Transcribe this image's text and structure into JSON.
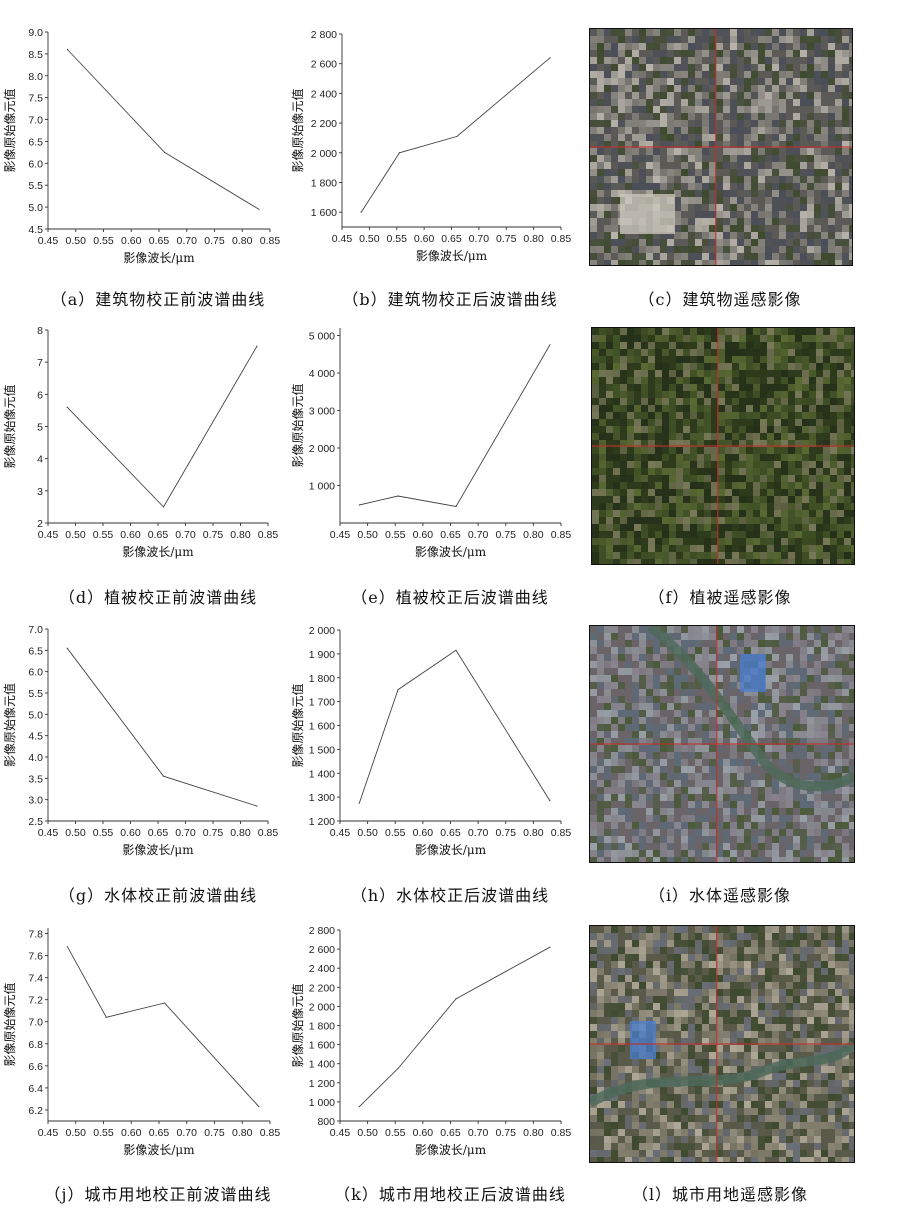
{
  "chart_data": [
    {
      "id": "a",
      "type": "line",
      "xlabel": "影像波长/μm",
      "ylabel": "影像原始像元值",
      "x": [
        0.485,
        0.66,
        0.83
      ],
      "values": [
        8.6,
        6.25,
        4.95
      ],
      "xlim": [
        0.45,
        0.85
      ],
      "ylim": [
        4.5,
        9.0
      ],
      "xticks": [
        0.45,
        0.5,
        0.55,
        0.6,
        0.65,
        0.7,
        0.75,
        0.8,
        0.85
      ],
      "yticks": [
        4.5,
        5.0,
        5.5,
        6.0,
        6.5,
        7.0,
        7.5,
        8.0,
        8.5,
        9.0
      ],
      "ytick_labels": [
        "4.5",
        "5.0",
        "5.5",
        "6.0",
        "6.5",
        "7.0",
        "7.5",
        "8.0",
        "8.5",
        "9.0"
      ]
    },
    {
      "id": "b",
      "type": "line",
      "xlabel": "影像波长/μm",
      "ylabel": "影像原始像元值",
      "x": [
        0.485,
        0.555,
        0.66,
        0.83
      ],
      "values": [
        1600,
        2000,
        2110,
        2640
      ],
      "xlim": [
        0.45,
        0.85
      ],
      "ylim": [
        1500,
        2800
      ],
      "xticks": [
        0.45,
        0.5,
        0.55,
        0.6,
        0.65,
        0.7,
        0.75,
        0.8,
        0.85
      ],
      "yticks": [
        1600,
        1800,
        2000,
        2200,
        2400,
        2600,
        2800
      ],
      "ytick_labels": [
        "1 600",
        "1 800",
        "2 000",
        "2 200",
        "2 400",
        "2 600",
        "2 800"
      ]
    },
    {
      "id": "d",
      "type": "line",
      "xlabel": "影像波长/μm",
      "ylabel": "影像原始像元值",
      "x": [
        0.485,
        0.66,
        0.83
      ],
      "values": [
        5.6,
        2.5,
        7.5
      ],
      "xlim": [
        0.45,
        0.85
      ],
      "ylim": [
        2,
        8
      ],
      "xticks": [
        0.45,
        0.5,
        0.55,
        0.6,
        0.65,
        0.7,
        0.75,
        0.8,
        0.85
      ],
      "yticks": [
        2,
        3,
        4,
        5,
        6,
        7,
        8
      ],
      "ytick_labels": [
        "2",
        "3",
        "4",
        "5",
        "6",
        "7",
        "8"
      ]
    },
    {
      "id": "e",
      "type": "line",
      "xlabel": "影像波长/μm",
      "ylabel": "影像原始像元值",
      "x": [
        0.485,
        0.555,
        0.66,
        0.83
      ],
      "values": [
        480,
        720,
        440,
        4750
      ],
      "xlim": [
        0.45,
        0.85
      ],
      "ylim": [
        0,
        5200
      ],
      "xticks": [
        0.45,
        0.5,
        0.55,
        0.6,
        0.65,
        0.7,
        0.75,
        0.8,
        0.85
      ],
      "yticks": [
        1000,
        2000,
        3000,
        4000,
        5000
      ],
      "ytick_labels": [
        "1 000",
        "2 000",
        "3 000",
        "4 000",
        "5 000"
      ]
    },
    {
      "id": "g",
      "type": "line",
      "xlabel": "影像波长/μm",
      "ylabel": "影像原始像元值",
      "x": [
        0.485,
        0.66,
        0.83
      ],
      "values": [
        6.55,
        3.55,
        2.85
      ],
      "xlim": [
        0.45,
        0.85
      ],
      "ylim": [
        2.5,
        7.0
      ],
      "xticks": [
        0.45,
        0.5,
        0.55,
        0.6,
        0.65,
        0.7,
        0.75,
        0.8,
        0.85
      ],
      "yticks": [
        2.5,
        3.0,
        3.5,
        4.0,
        4.5,
        5.0,
        5.5,
        6.0,
        6.5,
        7.0
      ],
      "ytick_labels": [
        "2.5",
        "3.0",
        "3.5",
        "4.0",
        "4.5",
        "5.0",
        "5.5",
        "6.0",
        "6.5",
        "7.0"
      ]
    },
    {
      "id": "h",
      "type": "line",
      "xlabel": "影像波长/μm",
      "ylabel": "影像原始像元值",
      "x": [
        0.485,
        0.555,
        0.66,
        0.83
      ],
      "values": [
        1275,
        1750,
        1915,
        1285
      ],
      "xlim": [
        0.45,
        0.85
      ],
      "ylim": [
        1200,
        2000
      ],
      "xticks": [
        0.45,
        0.5,
        0.55,
        0.6,
        0.65,
        0.7,
        0.75,
        0.8,
        0.85
      ],
      "yticks": [
        1200,
        1300,
        1400,
        1500,
        1600,
        1700,
        1800,
        1900,
        2000
      ],
      "ytick_labels": [
        "1 200",
        "1 300",
        "1 400",
        "1 500",
        "1 600",
        "1 700",
        "1 800",
        "1 900",
        "2 000"
      ]
    },
    {
      "id": "j",
      "type": "line",
      "xlabel": "影像波长/μm",
      "ylabel": "影像原始像元值",
      "x": [
        0.485,
        0.555,
        0.66,
        0.83
      ],
      "values": [
        7.68,
        7.04,
        7.17,
        6.23
      ],
      "xlim": [
        0.45,
        0.85
      ],
      "ylim": [
        6.1,
        7.85
      ],
      "xticks": [
        0.45,
        0.5,
        0.55,
        0.6,
        0.65,
        0.7,
        0.75,
        0.8,
        0.85
      ],
      "yticks": [
        6.2,
        6.4,
        6.6,
        6.8,
        7.0,
        7.2,
        7.4,
        7.6,
        7.8
      ],
      "ytick_labels": [
        "6.2",
        "6.4",
        "6.6",
        "6.8",
        "7.0",
        "7.2",
        "7.4",
        "7.6",
        "7.8"
      ]
    },
    {
      "id": "k",
      "type": "line",
      "xlabel": "影像波长/μm",
      "ylabel": "影像原始像元值",
      "x": [
        0.485,
        0.555,
        0.66,
        0.83
      ],
      "values": [
        950,
        1350,
        2080,
        2620
      ],
      "xlim": [
        0.45,
        0.85
      ],
      "ylim": [
        800,
        2800
      ],
      "xticks": [
        0.45,
        0.5,
        0.55,
        0.6,
        0.65,
        0.7,
        0.75,
        0.8,
        0.85
      ],
      "yticks": [
        800,
        1000,
        1200,
        1400,
        1600,
        1800,
        2000,
        2200,
        2400,
        2600,
        2800
      ],
      "ytick_labels": [
        "800",
        "1 000",
        "1 200",
        "1 400",
        "1 600",
        "1 800",
        "2 000",
        "2 200",
        "2 400",
        "2 600",
        "2 800"
      ]
    }
  ],
  "captions": {
    "a": "（a）建筑物校正前波谱曲线",
    "b": "（b）建筑物校正后波谱曲线",
    "c": "（c）建筑物遥感影像",
    "d": "（d）植被校正前波谱曲线",
    "e": "（e）植被校正后波谱曲线",
    "f": "（f）植被遥感影像",
    "g": "（g）水体校正前波谱曲线",
    "h": "（h）水体校正后波谱曲线",
    "i": "（i）水体遥感影像",
    "j": "（j）城市用地校正前波谱曲线",
    "k": "（k）城市用地校正后波谱曲线",
    "l": "（l）城市用地遥感影像"
  },
  "images": [
    {
      "id": "c",
      "subject": "building",
      "palette": [
        "#5b5a57",
        "#8a8780",
        "#3e4a2e",
        "#b7b3aa",
        "#4a4e58"
      ],
      "crosshair_color": "#c0302a"
    },
    {
      "id": "f",
      "subject": "vegetation",
      "palette": [
        "#2e3b1c",
        "#445528",
        "#5a6a34",
        "#7a7a5a",
        "#25301a"
      ],
      "crosshair_color": "#c0302a"
    },
    {
      "id": "i",
      "subject": "water",
      "palette": [
        "#6a6468",
        "#8a8690",
        "#4b5a3a",
        "#9aa0a8",
        "#5d6a78"
      ],
      "crosshair_color": "#c0302a",
      "accent": "#4a7fd0"
    },
    {
      "id": "l",
      "subject": "urban-land",
      "palette": [
        "#5a5a4a",
        "#8a8474",
        "#3d4a2e",
        "#b0a898",
        "#6a6f7a"
      ],
      "crosshair_color": "#c0302a",
      "accent": "#4a7fd0"
    }
  ]
}
